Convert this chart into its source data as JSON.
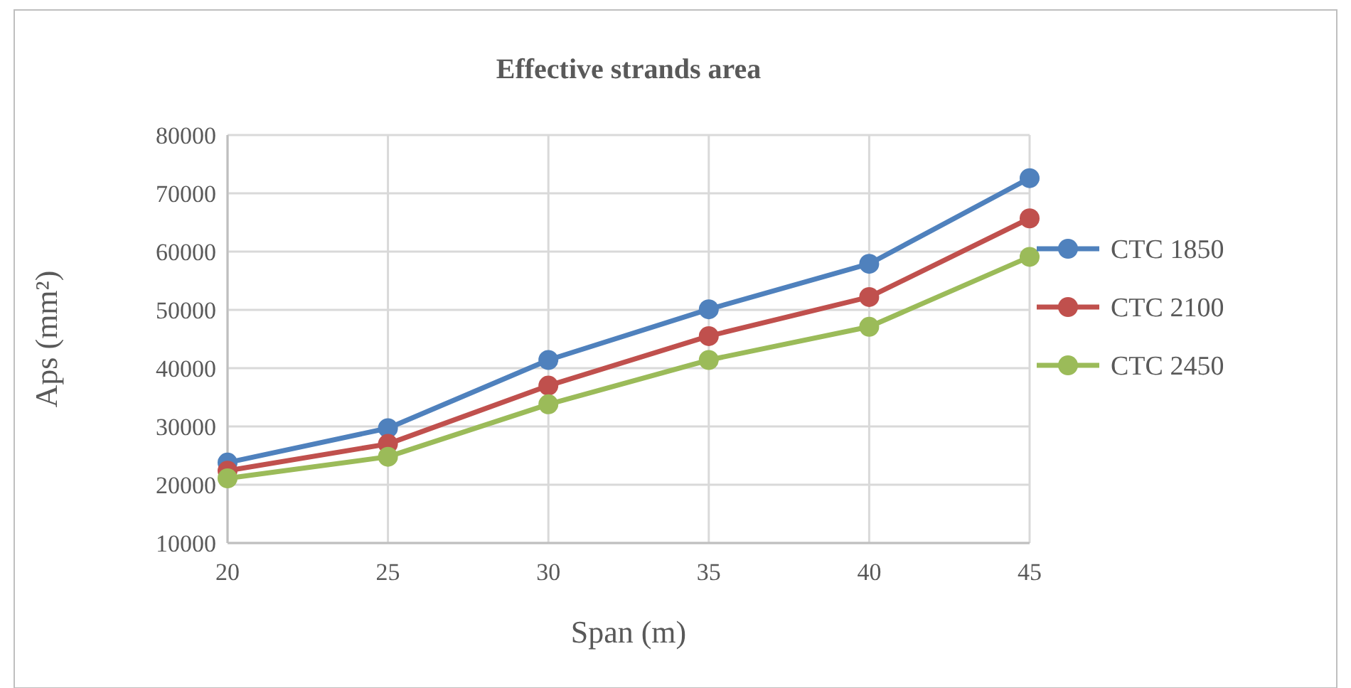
{
  "chart_data": {
    "type": "line",
    "title": "Effective strands area",
    "xlabel": "Span (m)",
    "ylabel": "Aps (mm²)",
    "x": [
      20,
      25,
      30,
      35,
      40,
      45
    ],
    "series": [
      {
        "name": "CTC 1850",
        "color": "#4f81bd",
        "values": [
          23800,
          29700,
          41400,
          50100,
          57900,
          72600
        ]
      },
      {
        "name": "CTC 2100",
        "color": "#c0504d",
        "values": [
          22400,
          27000,
          37000,
          45500,
          52200,
          65700
        ]
      },
      {
        "name": "CTC 2450",
        "color": "#9bbb59",
        "values": [
          21100,
          24800,
          33800,
          41400,
          47100,
          59100
        ]
      }
    ],
    "xlim": [
      20,
      45
    ],
    "xticks": [
      20,
      25,
      30,
      35,
      40,
      45
    ],
    "ylim": [
      10000,
      80000
    ],
    "yticks": [
      10000,
      20000,
      30000,
      40000,
      50000,
      60000,
      70000,
      80000
    ],
    "grid": true,
    "legend": "right",
    "marker": "circle",
    "line_style": "solid"
  }
}
